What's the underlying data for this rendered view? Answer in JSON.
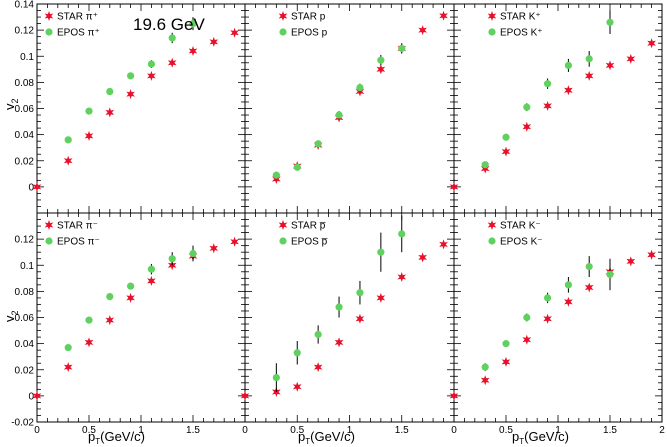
{
  "energy_label": "19.6 GeV",
  "ylabel_main": "v",
  "ylabel_sub": "2",
  "xlabel_main": "p",
  "xlabel_sub": "T",
  "xlabel_rest": "(GeV/c)",
  "colors": {
    "star": "#e8102a",
    "epos": "#5fd15f",
    "frame": "#000000"
  },
  "chart_data": [
    {
      "type": "scatter",
      "panel": "top-left",
      "xlim": [
        0,
        2
      ],
      "ylim": [
        -0.02,
        0.14
      ],
      "series": [
        {
          "name": "STAR π⁺",
          "marker": "star",
          "x": [
            0.0,
            0.3,
            0.5,
            0.7,
            0.9,
            1.1,
            1.3,
            1.5,
            1.7,
            1.9
          ],
          "y": [
            0.0,
            0.02,
            0.039,
            0.057,
            0.071,
            0.085,
            0.095,
            0.104,
            0.111,
            0.118
          ]
        },
        {
          "name": "EPOS π⁺",
          "marker": "circle",
          "x": [
            0.3,
            0.5,
            0.7,
            0.9,
            1.1,
            1.3,
            1.5
          ],
          "y": [
            0.036,
            0.058,
            0.073,
            0.085,
            0.094,
            0.114,
            0.125
          ],
          "err": [
            0.001,
            0.001,
            0.001,
            0.002,
            0.003,
            0.004,
            0.005
          ]
        }
      ],
      "yticks": [
        "0",
        "0.02",
        "0.04",
        "0.06",
        "0.08",
        "0.1",
        "0.12",
        "0.14"
      ]
    },
    {
      "type": "scatter",
      "panel": "top-middle",
      "xlim": [
        0,
        2
      ],
      "ylim": [
        -0.02,
        0.14
      ],
      "series": [
        {
          "name": "STAR p",
          "marker": "star",
          "x": [
            0.3,
            0.5,
            0.7,
            0.9,
            1.1,
            1.3,
            1.5,
            1.7,
            1.9
          ],
          "y": [
            0.006,
            0.016,
            0.032,
            0.053,
            0.073,
            0.09,
            0.106,
            0.12,
            0.131
          ]
        },
        {
          "name": "EPOS p",
          "marker": "circle",
          "x": [
            0.3,
            0.5,
            0.7,
            0.9,
            1.1,
            1.3,
            1.5
          ],
          "y": [
            0.009,
            0.015,
            0.033,
            0.055,
            0.076,
            0.097,
            0.106
          ],
          "err": [
            0.002,
            0.002,
            0.002,
            0.003,
            0.003,
            0.004,
            0.004
          ]
        }
      ]
    },
    {
      "type": "scatter",
      "panel": "top-right",
      "xlim": [
        0,
        2
      ],
      "ylim": [
        -0.02,
        0.14
      ],
      "series": [
        {
          "name": "STAR K⁺",
          "marker": "star",
          "x": [
            0.0,
            0.3,
            0.5,
            0.7,
            0.9,
            1.1,
            1.3,
            1.5,
            1.7,
            1.9
          ],
          "y": [
            0.0,
            0.014,
            0.027,
            0.046,
            0.062,
            0.074,
            0.085,
            0.093,
            0.098,
            0.11
          ]
        },
        {
          "name": "EPOS K⁺",
          "marker": "circle",
          "x": [
            0.3,
            0.5,
            0.7,
            0.9,
            1.1,
            1.3,
            1.5
          ],
          "y": [
            0.017,
            0.038,
            0.061,
            0.079,
            0.093,
            0.098,
            0.126
          ],
          "err": [
            0.002,
            0.002,
            0.003,
            0.004,
            0.005,
            0.006,
            0.009
          ]
        }
      ]
    },
    {
      "type": "scatter",
      "panel": "bottom-left",
      "xlim": [
        0,
        2
      ],
      "ylim": [
        -0.02,
        0.14
      ],
      "series": [
        {
          "name": "STAR π⁻",
          "marker": "star",
          "x": [
            0.0,
            0.3,
            0.5,
            0.7,
            0.9,
            1.1,
            1.3,
            1.5,
            1.7,
            1.9
          ],
          "y": [
            0.0,
            0.022,
            0.041,
            0.058,
            0.075,
            0.088,
            0.1,
            0.107,
            0.113,
            0.118
          ]
        },
        {
          "name": "EPOS π⁻",
          "marker": "circle",
          "x": [
            0.3,
            0.5,
            0.7,
            0.9,
            1.1,
            1.3,
            1.5
          ],
          "y": [
            0.037,
            0.058,
            0.076,
            0.084,
            0.097,
            0.105,
            0.109
          ],
          "err": [
            0.001,
            0.001,
            0.002,
            0.002,
            0.004,
            0.005,
            0.006
          ]
        }
      ],
      "yticks": [
        "-0.02",
        "0",
        "0.02",
        "0.04",
        "0.06",
        "0.08",
        "0.1",
        "0.12"
      ],
      "xticks": [
        "0",
        "0.5",
        "1",
        "1.5"
      ]
    },
    {
      "type": "scatter",
      "panel": "bottom-middle",
      "xlim": [
        0,
        2
      ],
      "ylim": [
        -0.02,
        0.14
      ],
      "series": [
        {
          "name": "STAR p̅",
          "marker": "star",
          "x": [
            0.0,
            0.3,
            0.5,
            0.7,
            0.9,
            1.1,
            1.3,
            1.5,
            1.7,
            1.9
          ],
          "y": [
            0.0,
            0.003,
            0.007,
            0.022,
            0.041,
            0.059,
            0.075,
            0.091,
            0.106,
            0.116
          ]
        },
        {
          "name": "EPOS p̅",
          "marker": "circle",
          "x": [
            0.3,
            0.5,
            0.7,
            0.9,
            1.1,
            1.3,
            1.5
          ],
          "y": [
            0.014,
            0.033,
            0.047,
            0.068,
            0.079,
            0.11,
            0.124
          ],
          "err": [
            0.011,
            0.009,
            0.007,
            0.008,
            0.009,
            0.015,
            0.014
          ]
        }
      ],
      "xticks": [
        "0",
        "0.5",
        "1",
        "1.5"
      ]
    },
    {
      "type": "scatter",
      "panel": "bottom-right",
      "xlim": [
        0,
        2
      ],
      "ylim": [
        -0.02,
        0.14
      ],
      "series": [
        {
          "name": "STAR K⁻",
          "marker": "star",
          "x": [
            0.0,
            0.3,
            0.5,
            0.7,
            0.9,
            1.1,
            1.3,
            1.5,
            1.7,
            1.9
          ],
          "y": [
            0.0,
            0.012,
            0.026,
            0.043,
            0.059,
            0.072,
            0.083,
            0.095,
            0.103,
            0.108
          ]
        },
        {
          "name": "EPOS K⁻",
          "marker": "circle",
          "x": [
            0.3,
            0.5,
            0.7,
            0.9,
            1.1,
            1.3,
            1.5
          ],
          "y": [
            0.022,
            0.04,
            0.06,
            0.075,
            0.085,
            0.099,
            0.093
          ],
          "err": [
            0.003,
            0.002,
            0.003,
            0.004,
            0.006,
            0.008,
            0.012
          ]
        }
      ],
      "xticks": [
        "0",
        "0.5",
        "1",
        "1.5",
        "2"
      ]
    }
  ]
}
